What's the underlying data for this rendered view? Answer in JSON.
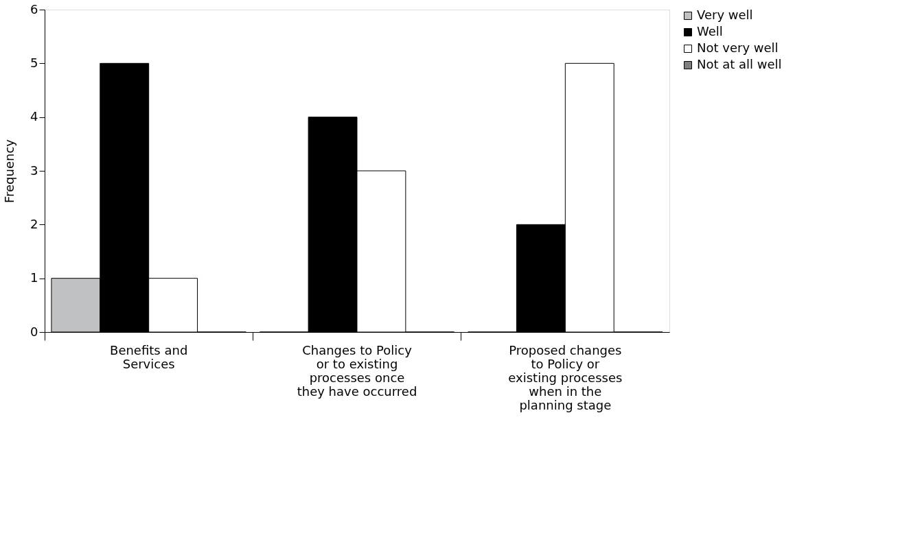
{
  "chart_data": {
    "type": "bar",
    "ylabel": "Frequency",
    "categories": [
      "Benefits and Services",
      "Changes to Policy or to existing processes once they have occurred",
      "Proposed changes to Policy or existing processes when in the planning stage"
    ],
    "series": [
      {
        "name": "Very well",
        "color": "#c0c1c3",
        "values": [
          1,
          0,
          0
        ]
      },
      {
        "name": "Well",
        "color": "#000000",
        "values": [
          5,
          4,
          2
        ]
      },
      {
        "name": "Not very well",
        "color": "#ffffff",
        "values": [
          1,
          3,
          5
        ]
      },
      {
        "name": "Not at all well",
        "color": "#7f7f7f",
        "values": [
          0,
          0,
          0
        ]
      }
    ],
    "ylim": [
      0,
      6
    ],
    "yticks": [
      0,
      1,
      2,
      3,
      4,
      5,
      6
    ],
    "grid": false,
    "legend": "top right"
  }
}
